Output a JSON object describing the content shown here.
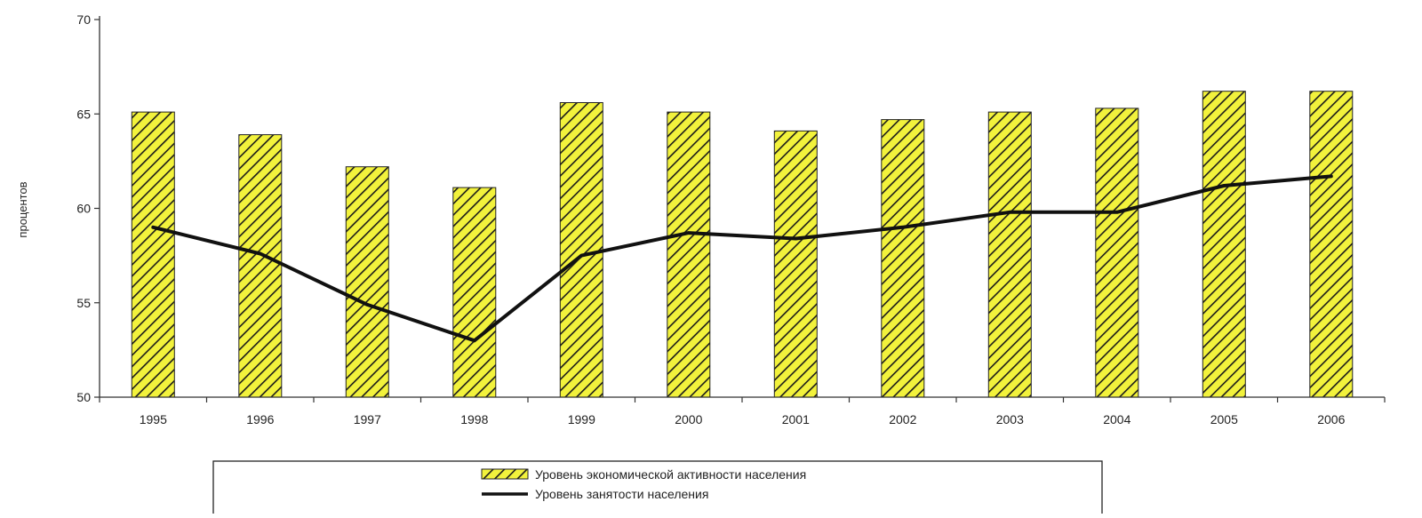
{
  "chart_data": {
    "type": "bar",
    "categories": [
      "1995",
      "1996",
      "1997",
      "1998",
      "1999",
      "2000",
      "2001",
      "2002",
      "2003",
      "2004",
      "2005",
      "2006"
    ],
    "series": [
      {
        "name": "Уровень экономической активности населения",
        "type": "bar",
        "values": [
          65.1,
          63.9,
          62.2,
          61.1,
          65.6,
          65.1,
          64.1,
          64.7,
          65.1,
          65.3,
          66.2,
          66.2
        ]
      },
      {
        "name": "Уровень занятости населения",
        "type": "line",
        "values": [
          59.0,
          57.6,
          54.9,
          53.0,
          57.5,
          58.7,
          58.4,
          59.0,
          59.8,
          59.8,
          61.2,
          61.7
        ]
      }
    ],
    "xlabel": "",
    "ylabel": "процентов",
    "ylim": [
      50,
      70
    ],
    "yticks": [
      "50",
      "55",
      "60",
      "65",
      "70"
    ],
    "legend": "bottom",
    "grid": false,
    "colors": {
      "bar_fill": "#f2f23c",
      "bar_hatch": "#1a1a1a",
      "line": "#111111",
      "axis": "#333333"
    }
  }
}
